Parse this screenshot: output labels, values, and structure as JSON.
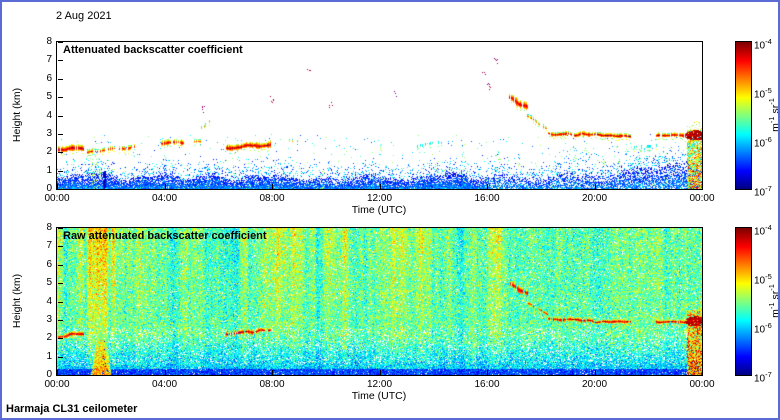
{
  "page": {
    "date_label": "2 Aug 2021",
    "instrument_label": "Harmaja CL31 ceilometer",
    "frame_color": "#5b6bd5",
    "background_color": "#ffffff"
  },
  "chart_data": [
    {
      "type": "heatmap",
      "title": "Attenuated backscatter coefficient",
      "xlabel": "Time (UTC)",
      "ylabel": "Height (km)",
      "x_tick_labels": [
        "00:00",
        "04:00",
        "08:00",
        "12:00",
        "16:00",
        "20:00",
        "00:00"
      ],
      "x_range_hours": [
        0,
        24
      ],
      "y_tick_labels": [
        "0",
        "1",
        "2",
        "3",
        "4",
        "5",
        "6",
        "7",
        "8"
      ],
      "y_range_km": [
        0,
        8
      ],
      "grid": false,
      "colorbar": {
        "colormap": "jet",
        "scale": "log",
        "min": 1e-07,
        "max": 0.0001,
        "tick_labels": [
          "10^-4",
          "10^-5",
          "10^-6",
          "10^-7"
        ],
        "unit_label": "m^-1 sr^-1"
      },
      "render": {
        "mode": "processed",
        "seed": 42,
        "surface_layer": {
          "base_height_km": 0.72,
          "variability": 0.22,
          "rise_after_hour": 18.5,
          "rise_to_km": 1.35
        },
        "dark_slit_hour": 1.74,
        "small_plume": {
          "t0": 1.33,
          "t1": 1.62,
          "top_km": 2.2
        },
        "speckle": {
          "dots": 1000,
          "columns": 24,
          "col_t_min": 8,
          "col_t_max": 23.3,
          "col_max_top_km": 2.6
        },
        "clouds": [
          {
            "t0": 0.05,
            "t1": 1.0,
            "h": 2.15,
            "dh": 0.1,
            "thick": 0.34,
            "intensity": 1.0,
            "broken": 0.08
          },
          {
            "t0": 1.15,
            "t1": 2.95,
            "h": 2.05,
            "dh": 0.25,
            "thick": 0.24,
            "intensity": 0.95,
            "broken": 0.45
          },
          {
            "t0": 3.9,
            "t1": 4.7,
            "h": 2.5,
            "dh": 0.1,
            "thick": 0.3,
            "intensity": 0.97,
            "broken": 0.25
          },
          {
            "t0": 4.95,
            "t1": 5.35,
            "h": 2.55,
            "dh": 0.05,
            "thick": 0.2,
            "intensity": 0.9,
            "broken": 0.4
          },
          {
            "t0": 5.35,
            "t1": 5.75,
            "h": 3.35,
            "dh": 0.45,
            "thick": 0.18,
            "intensity": 0.85,
            "broken": 0.55
          },
          {
            "t0": 6.3,
            "t1": 7.95,
            "h": 2.28,
            "dh": 0.18,
            "thick": 0.34,
            "intensity": 1.0,
            "broken": 0.07
          },
          {
            "t0": 8.55,
            "t1": 9.05,
            "h": 2.6,
            "dh": 0.05,
            "thick": 0.14,
            "intensity": 0.8,
            "broken": 0.55
          },
          {
            "t0": 13.4,
            "t1": 14.3,
            "h": 2.3,
            "dh": 0.25,
            "thick": 0.12,
            "intensity": 0.62,
            "broken": 0.72
          },
          {
            "t0": 16.85,
            "t1": 17.5,
            "h": 4.95,
            "dh": -0.5,
            "thick": 0.44,
            "intensity": 1.0,
            "broken": 0.12
          },
          {
            "t0": 17.5,
            "t1": 18.3,
            "h": 3.95,
            "dh": -0.75,
            "thick": 0.2,
            "intensity": 0.9,
            "broken": 0.5
          },
          {
            "t0": 18.3,
            "t1": 21.35,
            "h": 3.02,
            "dh": -0.12,
            "thick": 0.22,
            "intensity": 1.0,
            "broken": 0.1
          },
          {
            "t0": 21.35,
            "t1": 22.3,
            "h": 2.25,
            "dh": 0.1,
            "thick": 0.16,
            "intensity": 0.6,
            "broken": 0.7
          },
          {
            "t0": 22.3,
            "t1": 23.4,
            "h": 2.9,
            "dh": 0.0,
            "thick": 0.22,
            "intensity": 1.0,
            "broken": 0.12
          }
        ],
        "high_dots": [
          {
            "t": 5.5,
            "h": 4.3
          },
          {
            "t": 8.0,
            "h": 4.85
          },
          {
            "t": 9.4,
            "h": 6.6
          },
          {
            "t": 10.2,
            "h": 4.6
          },
          {
            "t": 12.6,
            "h": 5.2
          },
          {
            "t": 15.9,
            "h": 6.3
          },
          {
            "t": 16.1,
            "h": 5.6
          },
          {
            "t": 16.35,
            "h": 7.0
          }
        ],
        "precip_column": {
          "t0": 23.45,
          "t1": 24,
          "top_km": 3.2,
          "blob_t": 23.75,
          "blob_km": 2.95
        }
      }
    },
    {
      "type": "heatmap",
      "title": "Raw attenuated backscatter coefficient",
      "xlabel": "Time (UTC)",
      "ylabel": "Height (km)",
      "x_tick_labels": [
        "00:00",
        "04:00",
        "08:00",
        "12:00",
        "16:00",
        "20:00",
        "00:00"
      ],
      "x_range_hours": [
        0,
        24
      ],
      "y_tick_labels": [
        "0",
        "1",
        "2",
        "3",
        "4",
        "5",
        "6",
        "7",
        "8"
      ],
      "y_range_km": [
        0,
        8
      ],
      "grid": false,
      "colorbar": {
        "colormap": "jet",
        "scale": "log",
        "min": 1e-07,
        "max": 0.0001,
        "tick_labels": [
          "10^-4",
          "10^-5",
          "10^-6",
          "10^-7"
        ],
        "unit_label": "m^-1 sr^-1"
      },
      "render": {
        "mode": "raw",
        "seed": 7,
        "noise": {
          "base": 0.46,
          "spread": 0.15,
          "stripe_strength_early": 0.2,
          "stripe_strength_late": 0.07,
          "early_until_hour": 16.5,
          "white_speckle_base": 0.035,
          "white_speckle_low_band": 0.1
        },
        "plume": {
          "t0": 1.25,
          "t1": 2.0,
          "top_km": 2.4
        },
        "dark_slit_hour": 1.74,
        "clouds": [
          {
            "t0": 0.05,
            "t1": 1.0,
            "h": 2.15,
            "dh": 0.1,
            "thick": 0.25,
            "intensity": 1.0,
            "broken": 0.15
          },
          {
            "t0": 6.3,
            "t1": 7.95,
            "h": 2.28,
            "dh": 0.18,
            "thick": 0.25,
            "intensity": 1.0,
            "broken": 0.15
          },
          {
            "t0": 16.85,
            "t1": 17.5,
            "h": 4.95,
            "dh": -0.5,
            "thick": 0.4,
            "intensity": 1.0,
            "broken": 0.15
          },
          {
            "t0": 17.5,
            "t1": 18.3,
            "h": 3.95,
            "dh": -0.75,
            "thick": 0.18,
            "intensity": 0.95,
            "broken": 0.5
          },
          {
            "t0": 18.3,
            "t1": 21.35,
            "h": 3.02,
            "dh": -0.12,
            "thick": 0.22,
            "intensity": 1.0,
            "broken": 0.1
          },
          {
            "t0": 22.3,
            "t1": 23.4,
            "h": 2.9,
            "dh": 0.0,
            "thick": 0.22,
            "intensity": 1.0,
            "broken": 0.12
          }
        ],
        "precip_column": {
          "t0": 23.45,
          "t1": 24,
          "top_km": 3.5,
          "blob_t": 23.75,
          "blob_km": 2.95
        }
      }
    }
  ]
}
